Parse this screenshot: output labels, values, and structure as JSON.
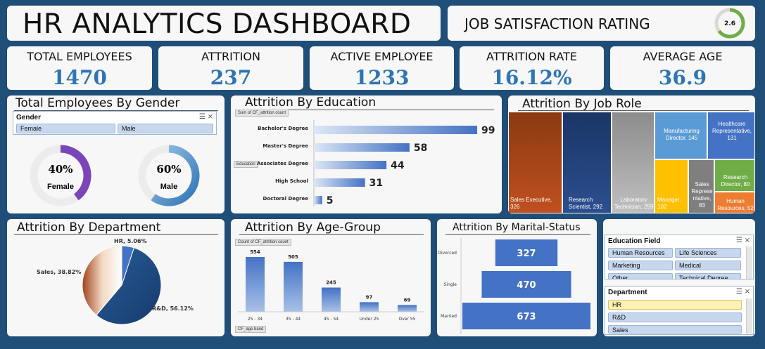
{
  "header": {
    "title": "HR ANALYTICS DASHBOARD"
  },
  "satisfaction": {
    "title": "JOB SATISFACTION RATING",
    "value": "2.6",
    "fraction": 0.65
  },
  "kpis": [
    {
      "label": "TOTAL EMPLOYEES",
      "value": "1470"
    },
    {
      "label": "ATTRITION",
      "value": "237"
    },
    {
      "label": "ACTIVE EMPLOYEE",
      "value": "1233"
    },
    {
      "label": "ATTRITION RATE",
      "value": "16.12%"
    },
    {
      "label": "AVERAGE AGE",
      "value": "36.9"
    }
  ],
  "gender": {
    "title": "Total Employees By Gender",
    "slicer_label": "Gender",
    "options": [
      "Female",
      "Male"
    ],
    "female_pct": "40%",
    "female_label": "Female",
    "female_fraction": 0.4,
    "male_pct": "60%",
    "male_label": "Male",
    "male_fraction": 0.6
  },
  "education_chart": {
    "title": "Attrition By Education",
    "field_button": "Sum of CF_attrition count",
    "axis_button": "Education",
    "chart_data": {
      "type": "bar",
      "categories": [
        "Bachelor's Degree",
        "Master's Degree",
        "Associates Degree",
        "High School",
        "Doctoral Degree"
      ],
      "values": [
        99,
        58,
        44,
        31,
        5
      ],
      "title": "Attrition By Education"
    }
  },
  "jobrole": {
    "title": "Attrition By Job Role",
    "chart_data": {
      "type": "treemap",
      "categories": [
        "Sales Executive",
        "Research Scientist",
        "Laboratory Technician",
        "Manufacturing Director",
        "Healthcare Representative",
        "Manager",
        "Sales Representative",
        "Research Director",
        "Human Resources"
      ],
      "values": [
        326,
        292,
        259,
        145,
        131,
        102,
        83,
        80,
        52
      ]
    },
    "labels": {
      "sales_exec": "Sales Executive, 326",
      "research_sci_1": "Research",
      "research_sci_2": "Scientist, 292",
      "lab_1": "Laboratory",
      "lab_2": "Technician, 259",
      "mfg_1": "Manufacturing",
      "mfg_2": "Director, 145",
      "health_1": "Healthcare",
      "health_2": "Representative,",
      "health_3": "131",
      "manager_1": "Manager,",
      "manager_2": "102",
      "salesrep_1": "Sales",
      "salesrep_2": "Represe",
      "salesrep_3": "ntative,",
      "salesrep_4": "83",
      "resdir_1": "Research",
      "resdir_2": "Director, 80",
      "hr_1": "Human",
      "hr_2": "Resources, 52"
    },
    "colors": [
      "#a0441a",
      "#1f3f7a",
      "#a6a6a6",
      "#5b9bd5",
      "#4472c4",
      "#ffc000",
      "#7f7f7f",
      "#70ad47",
      "#ed7d31"
    ]
  },
  "department": {
    "title": "Attrition By Department",
    "chart_data": {
      "type": "pie",
      "categories": [
        "R&D",
        "Sales",
        "HR"
      ],
      "values": [
        56.12,
        38.82,
        5.06
      ]
    },
    "labels": [
      "R&D, 56.12%",
      "Sales, 38.82%",
      "HR, 5.06%"
    ]
  },
  "agegroup": {
    "title": "Attrition By Age-Group",
    "field_button": "Count of CF_attrition count",
    "axis_button": "CF_age band",
    "chart_data": {
      "type": "bar",
      "categories": [
        "25 - 34",
        "35 - 44",
        "45 - 54",
        "Under 25",
        "Over 55"
      ],
      "values": [
        554,
        505,
        245,
        97,
        69
      ]
    }
  },
  "marital": {
    "title": "Attrition By Marital-Status",
    "chart_data": {
      "type": "bar",
      "categories": [
        "Divorced",
        "Single",
        "Married"
      ],
      "values": [
        327,
        470,
        673
      ]
    }
  },
  "slicers": {
    "education_field": {
      "label": "Education Field",
      "options": [
        "Human Resources",
        "Life Sciences",
        "Marketing",
        "Medical",
        "Other",
        "Technical Degree"
      ]
    },
    "department": {
      "label": "Department",
      "options": [
        "HR",
        "R&D",
        "Sales"
      ]
    }
  }
}
